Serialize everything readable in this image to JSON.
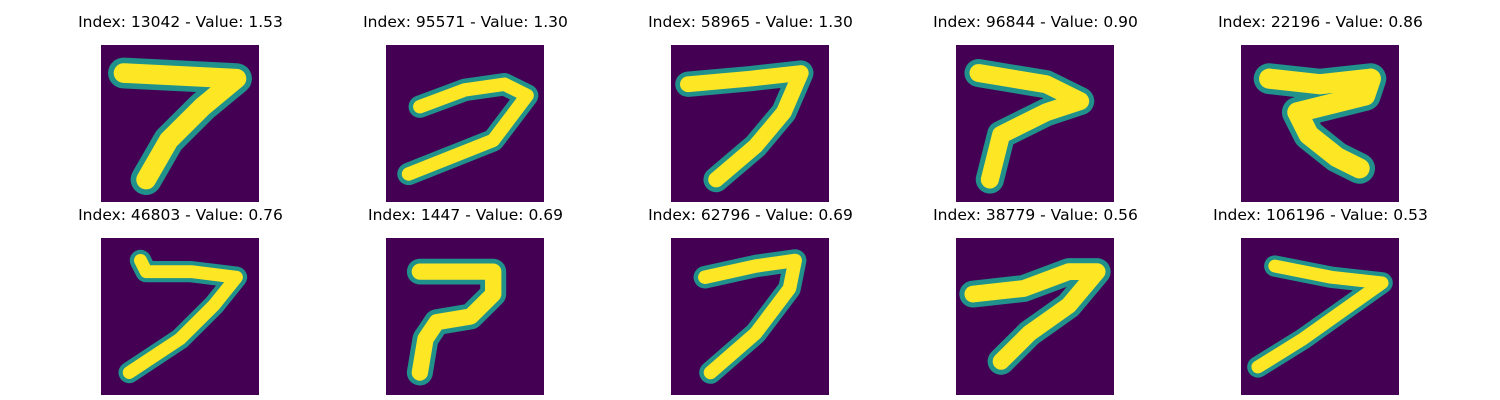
{
  "colors": {
    "background": "#440154",
    "foreground": "#fde725",
    "mid": "#21918c"
  },
  "figures": [
    {
      "title": "Index: 13042 - Value: 1.53",
      "index": 13042,
      "value": 1.53,
      "shape": "seven-a"
    },
    {
      "title": "Index: 95571 - Value: 1.30",
      "index": 95571,
      "value": 1.3,
      "shape": "seven-b"
    },
    {
      "title": "Index: 58965 - Value: 1.30",
      "index": 58965,
      "value": 1.3,
      "shape": "seven-c"
    },
    {
      "title": "Index: 96844 - Value: 0.90",
      "index": 96844,
      "value": 0.9,
      "shape": "seven-d"
    },
    {
      "title": "Index: 22196 - Value: 0.86",
      "index": 22196,
      "value": 0.86,
      "shape": "seven-e"
    },
    {
      "title": "Index: 46803 - Value: 0.76",
      "index": 46803,
      "value": 0.76,
      "shape": "seven-f"
    },
    {
      "title": "Index: 1447 - Value: 0.69",
      "index": 1447,
      "value": 0.69,
      "shape": "seven-g"
    },
    {
      "title": "Index: 62796 - Value: 0.69",
      "index": 62796,
      "value": 0.69,
      "shape": "seven-h"
    },
    {
      "title": "Index: 38779 - Value: 0.56",
      "index": 38779,
      "value": 0.56,
      "shape": "seven-i"
    },
    {
      "title": "Index: 106196 - Value: 0.53",
      "index": 106196,
      "value": 0.53,
      "shape": "seven-j"
    }
  ]
}
